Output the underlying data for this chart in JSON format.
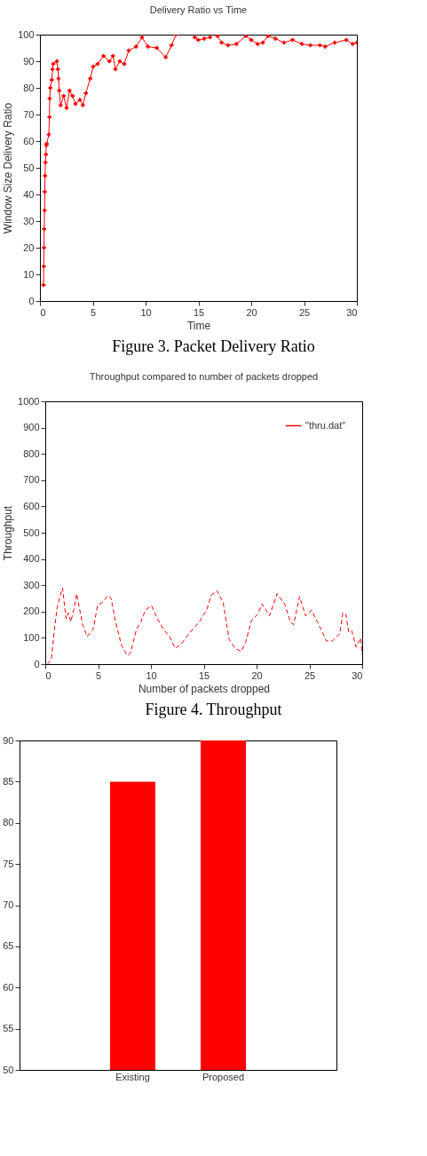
{
  "chart_data": [
    {
      "type": "line",
      "title": "Delivery Ratio vs Time",
      "xlabel": "Time",
      "ylabel": "Window Size  Delivery Ratio",
      "xlim": [
        0,
        30
      ],
      "xticks": [
        0,
        5,
        10,
        15,
        20,
        25,
        30
      ],
      "ylim": [
        0,
        100
      ],
      "yticks": [
        0,
        10,
        20,
        30,
        40,
        50,
        60,
        70,
        80,
        90,
        100
      ],
      "marker": "cross",
      "annotations": [
        "Figure 3. Packet Delivery Ratio"
      ],
      "x": [
        0.34,
        0.36,
        0.38,
        0.4,
        0.44,
        0.46,
        0.48,
        0.52,
        0.56,
        0.6,
        0.64,
        0.84,
        0.9,
        0.92,
        0.98,
        1.12,
        1.19,
        1.26,
        1.6,
        1.7,
        1.76,
        1.82,
        1.96,
        2.24,
        2.52,
        2.8,
        3.08,
        3.36,
        3.78,
        4.06,
        4.34,
        4.76,
        5.04,
        5.46,
        6.02,
        6.58,
        6.92,
        7.14,
        7.56,
        7.98,
        8.4,
        9.1,
        9.66,
        10.22,
        11.06,
        11.9,
        12.46,
        12.88,
        13.5,
        14.65,
        14.99,
        15.55,
        16.1,
        16.3,
        16.8,
        17.2,
        17.8,
        18.6,
        19.5,
        20.0,
        20.6,
        21.1,
        21.6,
        22.3,
        23.1,
        23.9,
        24.8,
        25.6,
        26.5,
        27.0,
        27.9,
        29.0,
        29.6,
        30
      ],
      "series": [
        {
          "color": "#ff0000",
          "values": [
            6,
            13,
            20,
            27,
            34,
            41,
            47,
            52,
            55,
            58.5,
            59,
            62.5,
            69,
            76,
            80,
            83,
            87,
            89,
            90,
            87,
            83.5,
            79,
            73.5,
            77,
            72.5,
            79,
            77,
            74,
            75.5,
            73.5,
            78,
            83.5,
            88,
            89,
            92,
            90,
            92,
            87,
            90,
            89,
            94,
            95.5,
            99,
            95.5,
            95,
            91.5,
            96,
            100,
            null,
            99,
            98,
            98.5,
            99,
            null,
            99.5,
            97,
            96,
            96.5,
            99.5,
            98,
            96.5,
            97,
            99.5,
            98.5,
            97,
            98,
            96.5,
            96,
            96,
            95.5,
            97,
            98,
            96.5,
            97
          ]
        }
      ]
    },
    {
      "type": "line",
      "title": "Throughput compared to number of packets dropped",
      "xlabel": "Number of packets dropped",
      "ylabel": "Throughput",
      "xlim": [
        0,
        30
      ],
      "xticks": [
        0,
        5,
        10,
        15,
        20,
        25,
        30
      ],
      "ylim": [
        0,
        1000
      ],
      "yticks": [
        0,
        100,
        200,
        300,
        400,
        500,
        600,
        700,
        800,
        900,
        1000
      ],
      "line_style": "dashed",
      "legend": "top right",
      "annotations": [
        "Figure 4. Throughput"
      ],
      "x": [
        0.2,
        0.57,
        0.85,
        1.13,
        1.42,
        1.64,
        1.84,
        1.98,
        2.18,
        2.41,
        2.69,
        2.97,
        3.26,
        3.54,
        3.96,
        4.53,
        4.95,
        5.38,
        5.94,
        6.23,
        6.65,
        7.22,
        7.78,
        8.07,
        8.63,
        9.06,
        9.48,
        10.05,
        10.62,
        11.18,
        11.75,
        12.31,
        12.88,
        13.73,
        14.58,
        15.28,
        15.71,
        16.27,
        16.84,
        17.41,
        17.97,
        18.54,
        18.96,
        19.53,
        20.1,
        20.52,
        21.23,
        21.94,
        22.65,
        23.21,
        23.5,
        24.07,
        24.63,
        25.2,
        25.76,
        26.61,
        27.17,
        27.88,
        28.16,
        28.45,
        28.73,
        29.01,
        29.43,
        29.86,
        30
      ],
      "series": [
        {
          "name": "\"thru.dat\"",
          "color": "#ff0000",
          "values": [
            0,
            15,
            127,
            217,
            262,
            290,
            217,
            172,
            195,
            161,
            206,
            268,
            206,
            150,
            105,
            133,
            223,
            234,
            262,
            251,
            161,
            71,
            32,
            43,
            133,
            161,
            206,
            223,
            172,
            133,
            105,
            60,
            77,
            122,
            161,
            206,
            262,
            279,
            234,
            93,
            60,
            48,
            82,
            167,
            189,
            229,
            184,
            268,
            229,
            161,
            150,
            257,
            184,
            206,
            161,
            88,
            88,
            116,
            195,
            189,
            122,
            127,
            65,
            99,
            37
          ]
        }
      ]
    },
    {
      "type": "bar",
      "categories": [
        "Existing",
        "Proposed"
      ],
      "ylim": [
        50,
        90
      ],
      "yticks": [
        50,
        55,
        60,
        65,
        70,
        75,
        80,
        85,
        90
      ],
      "series": [
        {
          "color": "#ff0000",
          "values": [
            85,
            90
          ]
        }
      ]
    }
  ]
}
